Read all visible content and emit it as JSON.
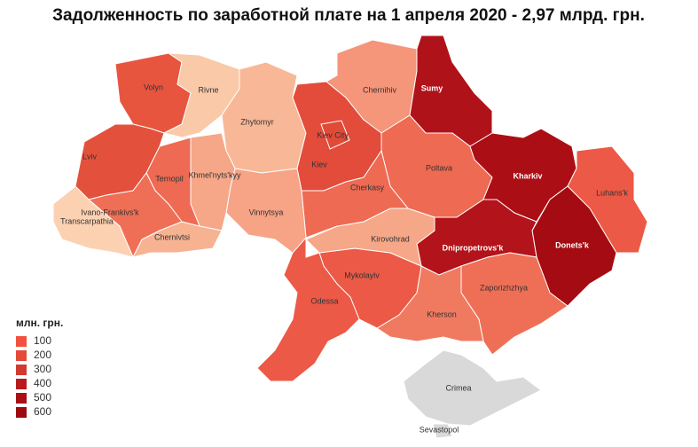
{
  "title": "Задолженность по заработной плате на 1 апреля 2020 - 2,97 млрд. грн.",
  "legend": {
    "title": "млн. грн.",
    "items": [
      {
        "label": 100,
        "color": "#f1523f"
      },
      {
        "label": 200,
        "color": "#e34a3a"
      },
      {
        "label": 300,
        "color": "#d03a30"
      },
      {
        "label": 400,
        "color": "#b81b1e"
      },
      {
        "label": 500,
        "color": "#a80f17"
      },
      {
        "label": 600,
        "color": "#9e0a11"
      }
    ]
  },
  "regions": [
    {
      "name": "Volyn",
      "color": "#e8553f"
    },
    {
      "name": "Rivne",
      "color": "#f9c9a8"
    },
    {
      "name": "Zhytomyr",
      "color": "#f8b897"
    },
    {
      "name": "Kiev",
      "color": "#e34b3a"
    },
    {
      "name": "Kiev City",
      "color": "#e24a38"
    },
    {
      "name": "Chernihiv",
      "color": "#f5957a"
    },
    {
      "name": "Sumy",
      "color": "#b0121a"
    },
    {
      "name": "Poltava",
      "color": "#ee6a52"
    },
    {
      "name": "Kharkiv",
      "color": "#ac0e15"
    },
    {
      "name": "Luhans'k",
      "color": "#ec5946"
    },
    {
      "name": "Donets'k",
      "color": "#a50b12"
    },
    {
      "name": "Dnipropetrovs'k",
      "color": "#b3131a"
    },
    {
      "name": "Zaporizhzhya",
      "color": "#ef6f56"
    },
    {
      "name": "Kherson",
      "color": "#f07a60"
    },
    {
      "name": "Mykolayiv",
      "color": "#ec5946"
    },
    {
      "name": "Kirovohrad",
      "color": "#f5a788"
    },
    {
      "name": "Cherkasy",
      "color": "#ee6a52"
    },
    {
      "name": "Vinnytsya",
      "color": "#f6a386"
    },
    {
      "name": "Khmel'nyts'kyy",
      "color": "#f5a788"
    },
    {
      "name": "Ternopil",
      "color": "#ee6a52"
    },
    {
      "name": "Lviv",
      "color": "#e3513c"
    },
    {
      "name": "Ivano-Frankivs'k",
      "color": "#ef6f56"
    },
    {
      "name": "Transcarpathia",
      "color": "#fcd1b2"
    },
    {
      "name": "Chernivtsi",
      "color": "#f7b291"
    },
    {
      "name": "Odessa",
      "color": "#ec5946"
    },
    {
      "name": "Crimea",
      "color": "#d9d9d9"
    },
    {
      "name": "Sevastopol",
      "color": "#d9d9d9"
    }
  ]
}
